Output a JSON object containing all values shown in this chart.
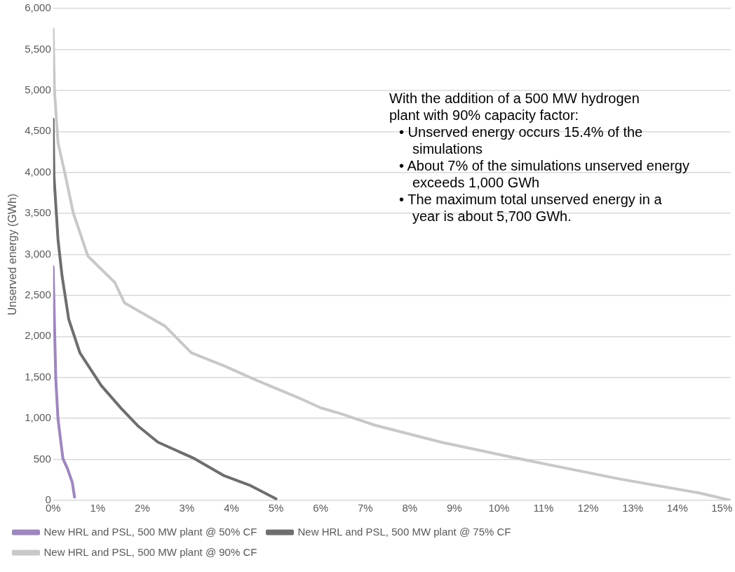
{
  "chart_data": {
    "type": "line",
    "ylabel": "Unserved energy (GWh)",
    "xlim": [
      0,
      15.2
    ],
    "ylim": [
      0,
      6000
    ],
    "xticks": [
      {
        "value": 0,
        "label": "0%"
      },
      {
        "value": 1,
        "label": "1%"
      },
      {
        "value": 2,
        "label": "2%"
      },
      {
        "value": 3,
        "label": "3%"
      },
      {
        "value": 4,
        "label": "4%"
      },
      {
        "value": 5,
        "label": "5%"
      },
      {
        "value": 6,
        "label": "6%"
      },
      {
        "value": 7,
        "label": "7%"
      },
      {
        "value": 8,
        "label": "8%"
      },
      {
        "value": 9,
        "label": "9%"
      },
      {
        "value": 10,
        "label": "10%"
      },
      {
        "value": 11,
        "label": "11%"
      },
      {
        "value": 12,
        "label": "12%"
      },
      {
        "value": 13,
        "label": "13%"
      },
      {
        "value": 14,
        "label": "14%"
      },
      {
        "value": 15,
        "label": "15%"
      }
    ],
    "yticks": [
      0,
      500,
      {
        "value": 1000,
        "label": "1,000"
      },
      {
        "value": 1500,
        "label": "1,500"
      },
      {
        "value": 2000,
        "label": "2,000"
      },
      {
        "value": 2500,
        "label": "2,500"
      },
      {
        "value": 3000,
        "label": "3,000"
      },
      {
        "value": 3500,
        "label": "3,500"
      },
      {
        "value": 4000,
        "label": "4,000"
      },
      {
        "value": 4500,
        "label": "4,500"
      },
      {
        "value": 5000,
        "label": "5,000"
      },
      {
        "value": 5500,
        "label": "5,500"
      },
      {
        "value": 6000,
        "label": "6,000"
      }
    ],
    "grid": "y",
    "legend": "bottom",
    "marker": "none",
    "line_style": "solid",
    "series": [
      {
        "name": "New HRL and PSL, 500 MW plant @ 50% CF",
        "color": "#9e86c0",
        "x": [
          0,
          0.04,
          0.06,
          0.11,
          0.22,
          0.32,
          0.43,
          0.48
        ],
        "values": [
          2850,
          1930,
          1480,
          990,
          510,
          390,
          220,
          40
        ]
      },
      {
        "name": "New HRL and PSL, 500 MW plant @ 75% CF",
        "color": "#6e6e6e",
        "x": [
          0,
          0.02,
          0.11,
          0.2,
          0.35,
          0.6,
          1.08,
          1.53,
          1.9,
          2.35,
          3.17,
          3.84,
          4.43,
          5.0
        ],
        "values": [
          4650,
          3950,
          3180,
          2740,
          2210,
          1800,
          1400,
          1120,
          910,
          710,
          510,
          300,
          180,
          20
        ]
      },
      {
        "name": "New HRL and PSL, 500 MW plant @ 90% CF",
        "color": "#c8c8c8",
        "x": [
          0,
          0.03,
          0.11,
          0.26,
          0.45,
          0.78,
          1.38,
          1.6,
          2.5,
          3.1,
          3.84,
          4.5,
          5.47,
          6.0,
          6.5,
          7.2,
          8.7,
          10.26,
          12.72,
          14.5,
          15.2
        ],
        "values": [
          5750,
          5000,
          4360,
          4000,
          3510,
          2980,
          2660,
          2410,
          2130,
          1800,
          1640,
          1480,
          1260,
          1130,
          1050,
          920,
          710,
          530,
          260,
          90,
          0
        ]
      }
    ],
    "annotations": [
      "With the addition of a 500 MW hydrogen plant with 90% capacity factor:",
      "• Unserved energy occurs 15.4% of the simulations",
      "• About 7% of the simulations unserved energy exceeds 1,000 GWh",
      "• The maximum total unserved energy in a year is about 5,700 GWh."
    ]
  }
}
